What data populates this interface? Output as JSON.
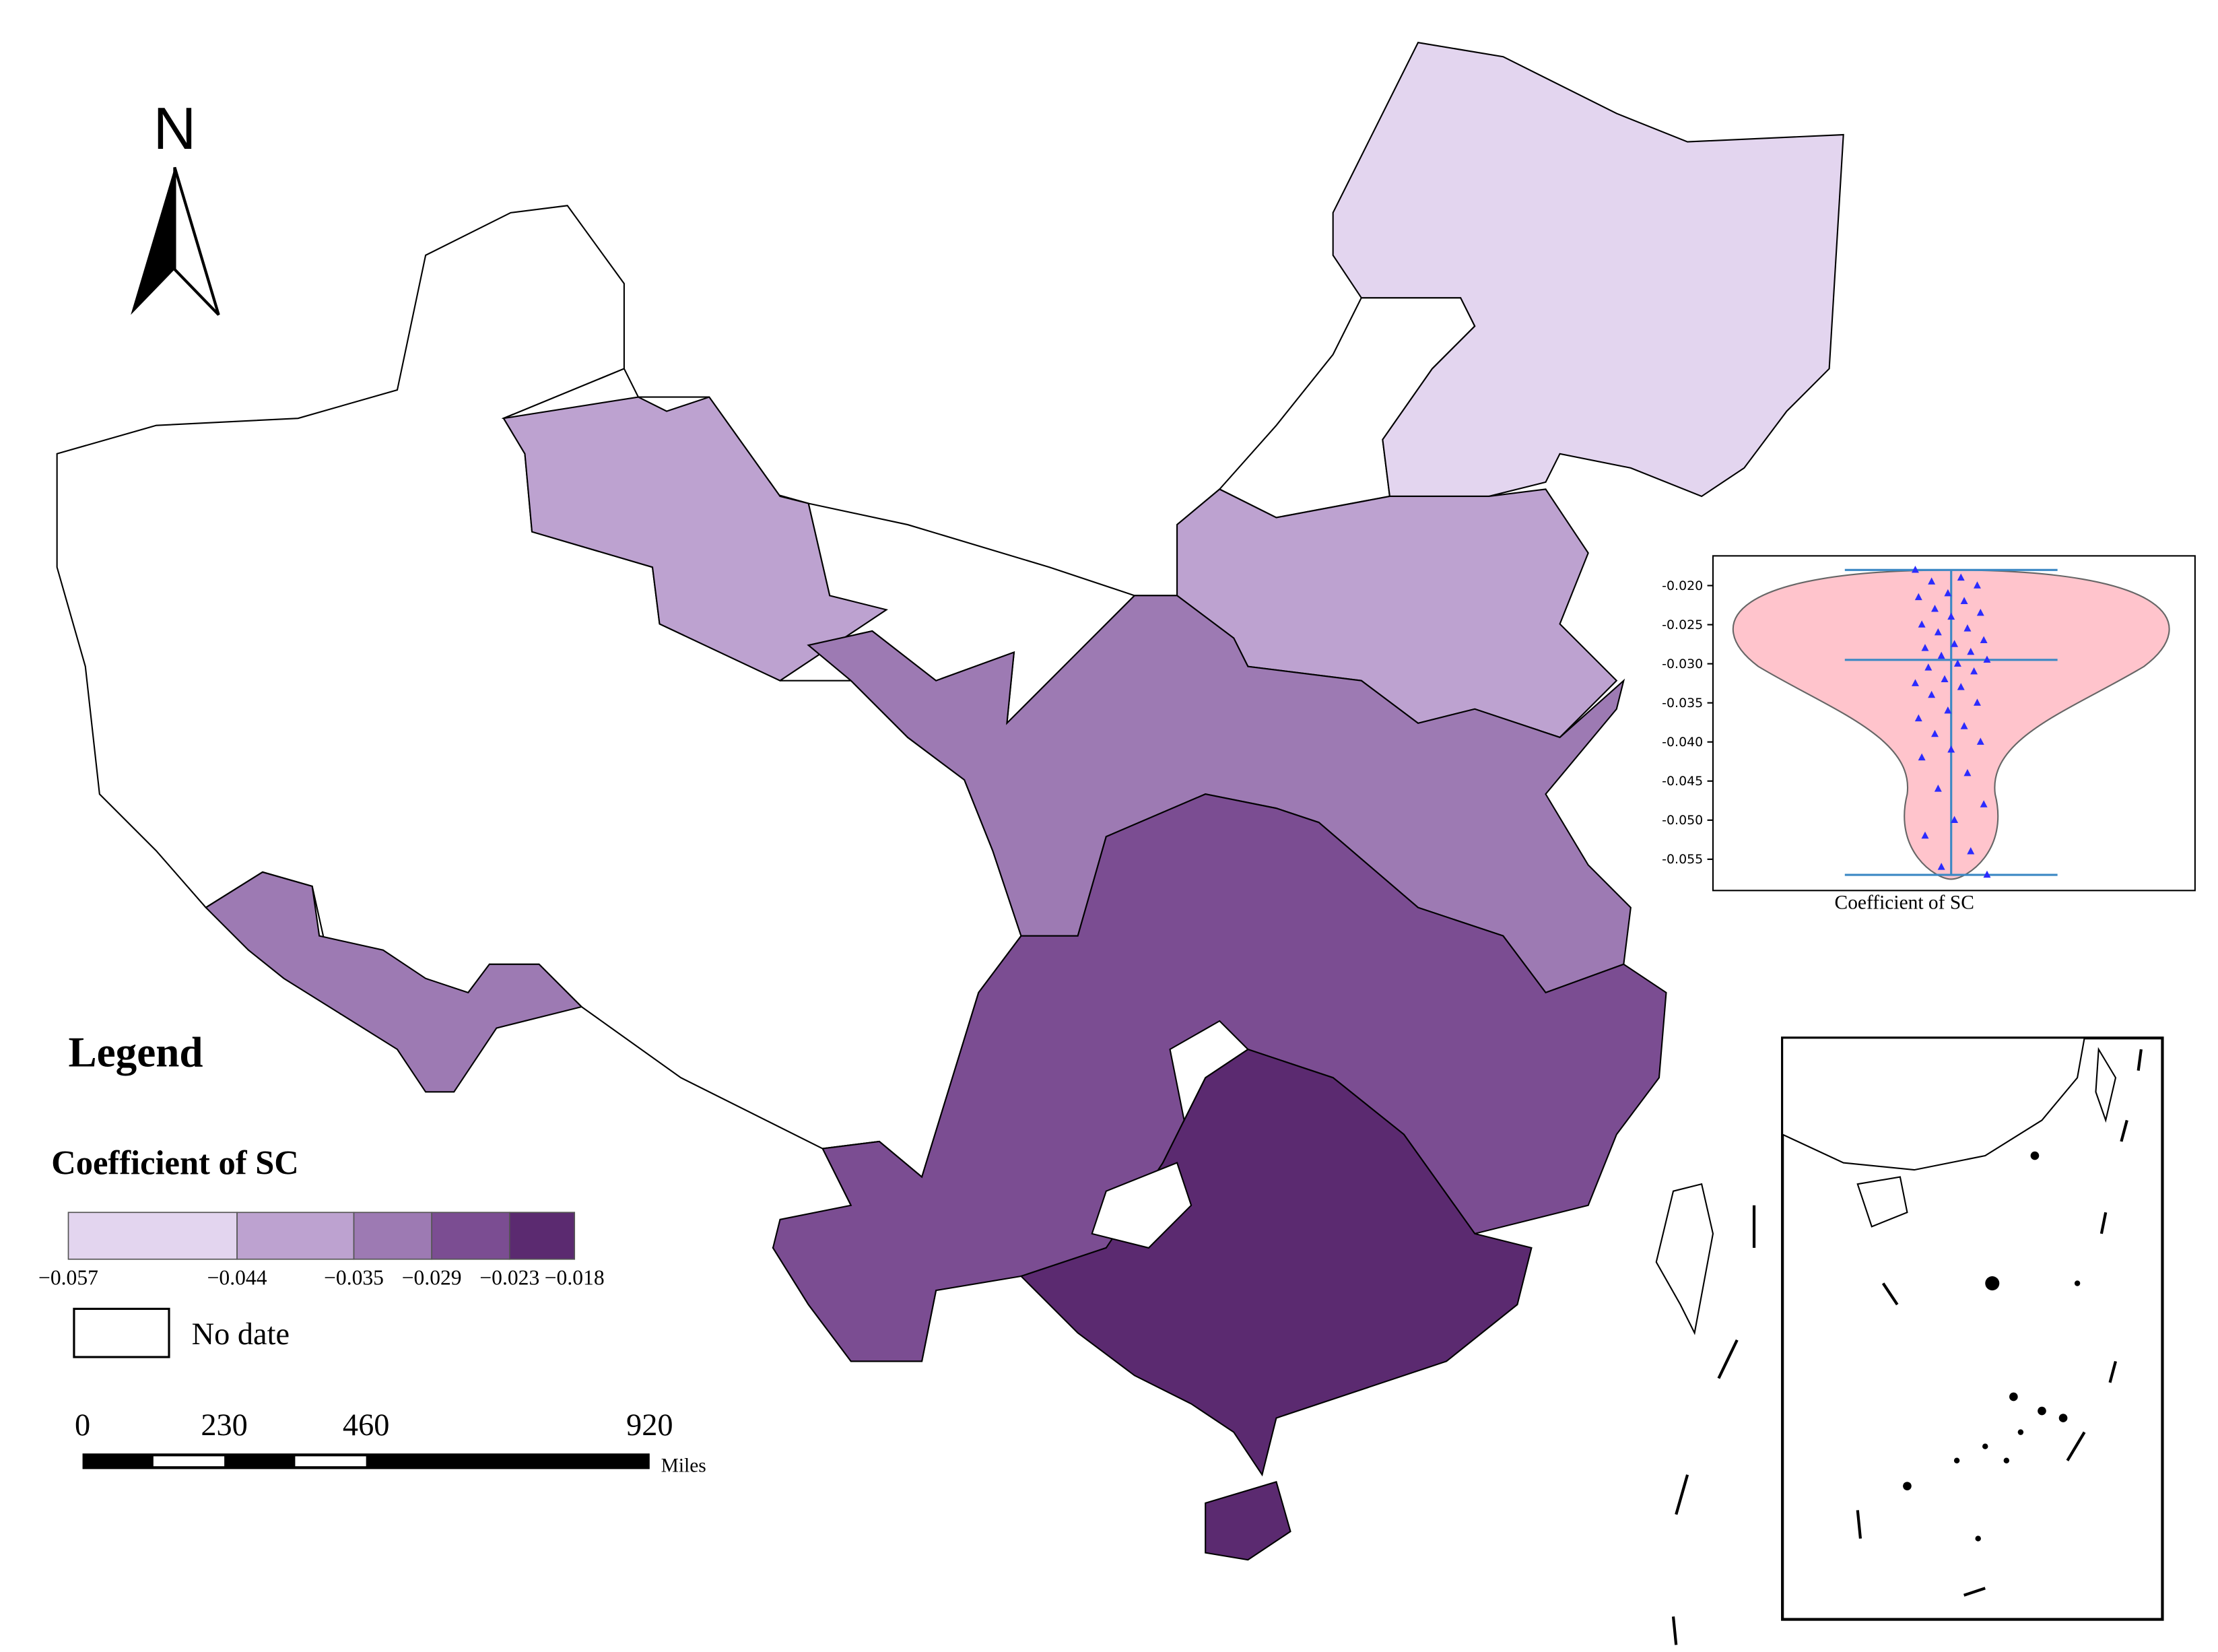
{
  "north_arrow": "N",
  "legend": {
    "title": "Legend",
    "subtitle": "Coefficient of SC",
    "breaks": [
      {
        "value": -0.057,
        "label": "−0.057"
      },
      {
        "value": -0.044,
        "label": "−0.044"
      },
      {
        "value": -0.035,
        "label": "−0.035"
      },
      {
        "value": -0.029,
        "label": "−0.029"
      },
      {
        "value": -0.023,
        "label": "−0.023"
      },
      {
        "value": -0.018,
        "label": "−0.018"
      }
    ],
    "colors": [
      "#e3d5ef",
      "#bda2d0",
      "#9d7ab3",
      "#7b4d92",
      "#5b2a70"
    ],
    "no_data_label": "No date"
  },
  "scale_bar": {
    "ticks": [
      0,
      230,
      460,
      920
    ],
    "unit": "Miles"
  },
  "violin": {
    "type": "violin",
    "xlabel": "Coefficient of SC",
    "ylim": [
      -0.059,
      -0.0162
    ],
    "yticks": [
      {
        "value": -0.02,
        "label": "-0.020"
      },
      {
        "value": -0.025,
        "label": "-0.025"
      },
      {
        "value": -0.03,
        "label": "-0.030"
      },
      {
        "value": -0.035,
        "label": "-0.035"
      },
      {
        "value": -0.04,
        "label": "-0.040"
      },
      {
        "value": -0.045,
        "label": "-0.045"
      },
      {
        "value": -0.05,
        "label": "-0.050"
      },
      {
        "value": -0.055,
        "label": "-0.055"
      }
    ],
    "max": -0.018,
    "mean": -0.0295,
    "min": -0.057,
    "points": [
      -0.018,
      -0.019,
      -0.0195,
      -0.02,
      -0.021,
      -0.0215,
      -0.022,
      -0.023,
      -0.0235,
      -0.024,
      -0.025,
      -0.0255,
      -0.026,
      -0.027,
      -0.0275,
      -0.028,
      -0.0285,
      -0.029,
      -0.0295,
      -0.03,
      -0.0305,
      -0.031,
      -0.032,
      -0.0325,
      -0.033,
      -0.034,
      -0.035,
      -0.036,
      -0.037,
      -0.038,
      -0.039,
      -0.04,
      -0.041,
      -0.042,
      -0.044,
      -0.046,
      -0.048,
      -0.05,
      -0.052,
      -0.054,
      -0.056,
      -0.057
    ]
  }
}
